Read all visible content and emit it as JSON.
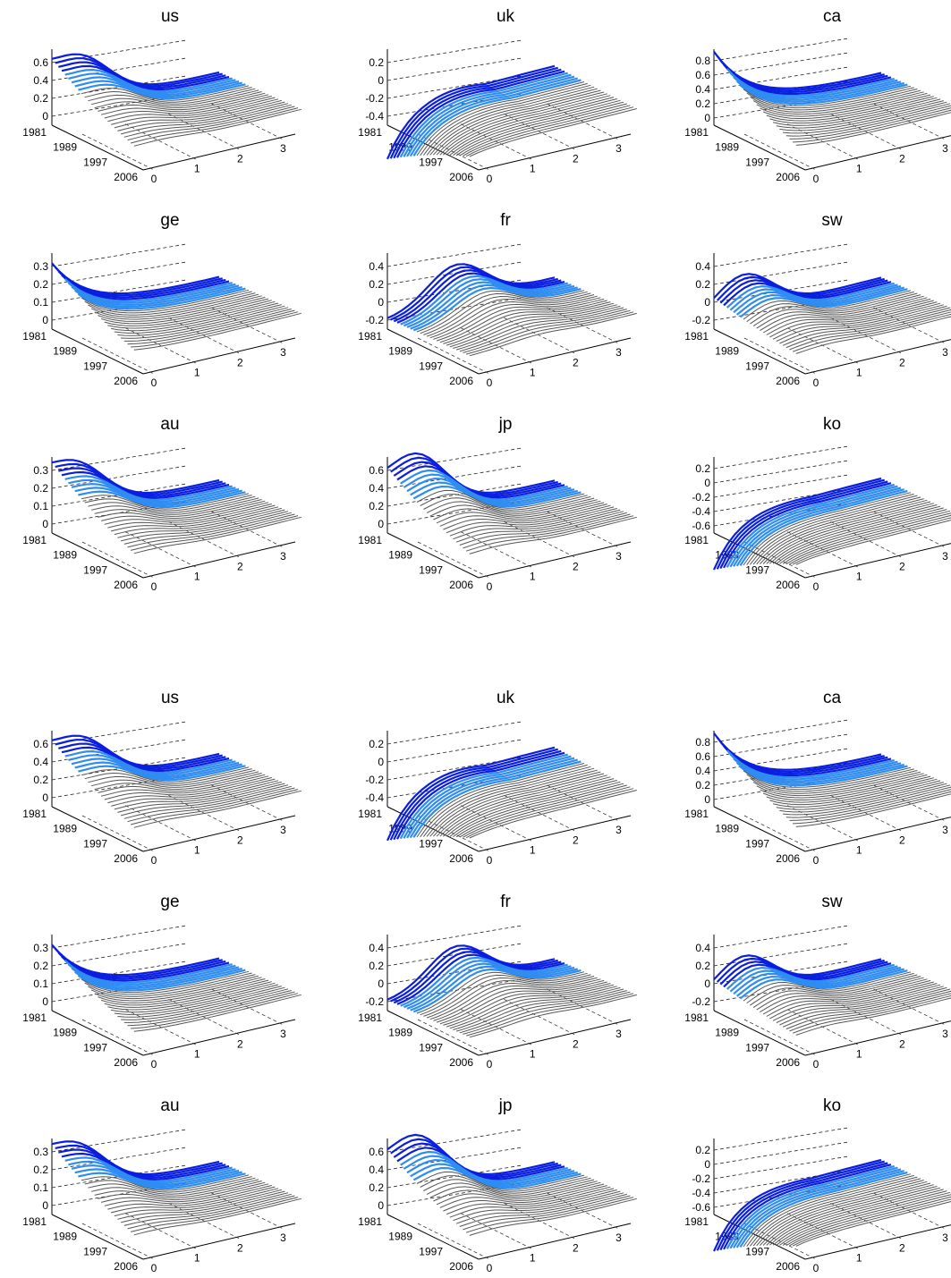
{
  "figure_blocks": [
    {
      "panels": [
        "us",
        "uk",
        "ca",
        "ge",
        "fr",
        "sw",
        "au",
        "jp",
        "ko"
      ]
    },
    {
      "panels": [
        "us",
        "uk",
        "ca",
        "ge",
        "fr",
        "sw",
        "au",
        "jp",
        "ko"
      ]
    }
  ],
  "chart_data": {
    "type": "surface",
    "description_axes": {
      "x_ticks": [
        "0",
        "1",
        "2",
        "3"
      ],
      "y_ticks": [
        "1981",
        "1989",
        "1997",
        "2006"
      ]
    },
    "panels": {
      "us": {
        "z_ticks": [
          "0",
          "0.2",
          "0.4",
          "0.6"
        ],
        "zlim": [
          -0.1,
          0.7
        ],
        "peak": 0.55,
        "peak_x": 0.6,
        "start": 0.4,
        "highlight": "hump"
      },
      "uk": {
        "z_ticks": [
          "-0.4",
          "-0.2",
          "0",
          "0.2"
        ],
        "zlim": [
          -0.5,
          0.3
        ],
        "peak": 0.2,
        "peak_x": 1.2,
        "start": -0.45,
        "highlight": "trough"
      },
      "ca": {
        "z_ticks": [
          "0",
          "0.2",
          "0.4",
          "0.6",
          "0.8"
        ],
        "zlim": [
          -0.1,
          0.9
        ],
        "peak": 0.85,
        "peak_x": 0.0,
        "start": 0.85,
        "highlight": "decay"
      },
      "ge": {
        "z_ticks": [
          "0",
          "0.1",
          "0.2",
          "0.3"
        ],
        "zlim": [
          -0.05,
          0.35
        ],
        "peak": 0.3,
        "peak_x": 0.0,
        "start": 0.3,
        "highlight": "decay"
      },
      "fr": {
        "z_ticks": [
          "-0.2",
          "0",
          "0.2",
          "0.4"
        ],
        "zlim": [
          -0.3,
          0.5
        ],
        "peak": 0.4,
        "peak_x": 1.4,
        "start": 0.0,
        "highlight": "hump"
      },
      "sw": {
        "z_ticks": [
          "-0.2",
          "0",
          "0.2",
          "0.4"
        ],
        "zlim": [
          -0.3,
          0.5
        ],
        "peak": 0.4,
        "peak_x": 0.6,
        "start": 0.0,
        "highlight": "hump"
      },
      "au": {
        "z_ticks": [
          "0",
          "0.1",
          "0.2",
          "0.3"
        ],
        "zlim": [
          -0.05,
          0.35
        ],
        "peak": 0.28,
        "peak_x": 0.5,
        "start": 0.2,
        "highlight": "hump"
      },
      "jp": {
        "z_ticks": [
          "0",
          "0.2",
          "0.4",
          "0.6"
        ],
        "zlim": [
          -0.1,
          0.7
        ],
        "peak": 0.65,
        "peak_x": 0.6,
        "start": 0.3,
        "highlight": "hump"
      },
      "ko": {
        "z_ticks": [
          "-0.6",
          "-0.4",
          "-0.2",
          "0",
          "0.2"
        ],
        "zlim": [
          -0.7,
          0.3
        ],
        "peak": 0.1,
        "peak_x": 0.8,
        "start": -0.6,
        "highlight": "trough"
      }
    }
  },
  "colors": {
    "mesh": "#555555",
    "surface": "#f0f0f0",
    "highlight_dark": "#0a1ee0",
    "highlight_light": "#2f8cf0",
    "axis": "#000000"
  }
}
